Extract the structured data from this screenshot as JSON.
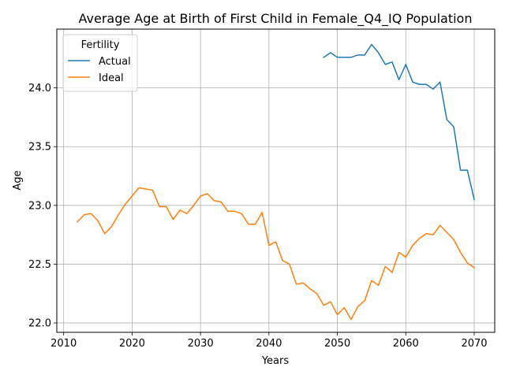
{
  "chart_data": {
    "type": "line",
    "title": "Average Age at Birth of First Child in Female_Q4_IQ Population",
    "xlabel": "Years",
    "ylabel": "Age",
    "xlim": [
      2009,
      2073
    ],
    "ylim": [
      21.92,
      24.5
    ],
    "xticks": [
      2010,
      2020,
      2030,
      2040,
      2050,
      2060,
      2070
    ],
    "yticks": [
      22.0,
      22.5,
      23.0,
      23.5,
      24.0
    ],
    "xtick_labels": [
      "2010",
      "2020",
      "2030",
      "2040",
      "2050",
      "2060",
      "2070"
    ],
    "ytick_labels": [
      "22.0",
      "22.5",
      "23.0",
      "23.5",
      "24.0"
    ],
    "grid": true,
    "legend": {
      "title": "Fertility",
      "placement": "top-left"
    },
    "series": [
      {
        "name": "Actual",
        "color": "#1f77b4",
        "x": [
          2048,
          2049,
          2050,
          2051,
          2052,
          2053,
          2054,
          2055,
          2056,
          2057,
          2058,
          2059,
          2060,
          2061,
          2062,
          2063,
          2064,
          2065,
          2066,
          2067,
          2068,
          2069,
          2070
        ],
        "y": [
          24.26,
          24.3,
          24.26,
          24.26,
          24.26,
          24.28,
          24.28,
          24.37,
          24.3,
          24.2,
          24.22,
          24.07,
          24.2,
          24.05,
          24.03,
          24.03,
          23.99,
          24.05,
          23.73,
          23.67,
          23.3,
          23.3,
          23.05
        ]
      },
      {
        "name": "Ideal",
        "color": "#ff7f0e",
        "x": [
          2012,
          2013,
          2014,
          2015,
          2016,
          2017,
          2018,
          2019,
          2020,
          2021,
          2022,
          2023,
          2024,
          2025,
          2026,
          2027,
          2028,
          2029,
          2030,
          2031,
          2032,
          2033,
          2034,
          2035,
          2036,
          2037,
          2038,
          2039,
          2040,
          2041,
          2042,
          2043,
          2044,
          2045,
          2046,
          2047,
          2048,
          2049,
          2050,
          2051,
          2052,
          2053,
          2054,
          2055,
          2056,
          2057,
          2058,
          2059,
          2060,
          2061,
          2062,
          2063,
          2064,
          2065,
          2066,
          2067,
          2068,
          2069,
          2070
        ],
        "y": [
          22.86,
          22.92,
          22.93,
          22.87,
          22.76,
          22.82,
          22.92,
          23.01,
          23.08,
          23.15,
          23.14,
          23.13,
          22.99,
          22.99,
          22.88,
          22.96,
          22.93,
          23.0,
          23.08,
          23.1,
          23.04,
          23.03,
          22.95,
          22.95,
          22.93,
          22.84,
          22.84,
          22.94,
          22.66,
          22.69,
          22.53,
          22.5,
          22.33,
          22.34,
          22.29,
          22.25,
          22.15,
          22.18,
          22.07,
          22.13,
          22.03,
          22.14,
          22.19,
          22.36,
          22.32,
          22.48,
          22.43,
          22.6,
          22.56,
          22.66,
          22.72,
          22.76,
          22.75,
          22.83,
          22.77,
          22.71,
          22.6,
          22.51,
          22.47
        ]
      }
    ]
  }
}
